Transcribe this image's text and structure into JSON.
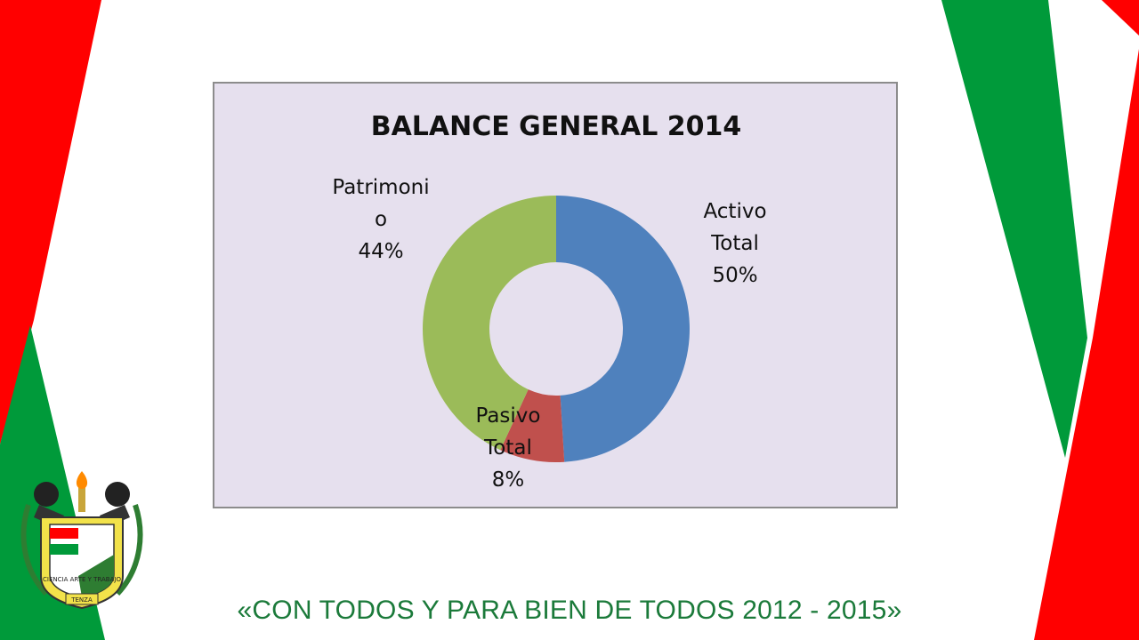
{
  "colors": {
    "flag_red": "#ff0000",
    "flag_green": "#009a3a",
    "chart_bg": "#e6e0ee",
    "slogan_green": "#1b7a3a"
  },
  "emblem": {
    "icon": "municipal-coat-of-arms",
    "motto_text": "CIENCIA ARTE Y TRABAJO",
    "place_text": "TENZA"
  },
  "slogan": "«CON TODOS Y PARA BIEN DE TODOS 2012 - 2015»",
  "chart_data": {
    "type": "pie",
    "variant": "donut",
    "title": "BALANCE GENERAL 2014",
    "slices": [
      {
        "label_lines": [
          "Activo",
          "Total",
          "50%"
        ],
        "name": "Activo Total",
        "percent": 50,
        "color": "#4f81bd"
      },
      {
        "label_lines": [
          "Pasivo",
          "Total",
          "8%"
        ],
        "name": "Pasivo Total",
        "percent": 8,
        "color": "#c0504d"
      },
      {
        "label_lines": [
          "Patrimoni",
          "o",
          "44%"
        ],
        "name": "Patrimonio",
        "percent": 44,
        "color": "#9bbb59"
      }
    ],
    "legend": "none",
    "data_labels": "outside"
  }
}
